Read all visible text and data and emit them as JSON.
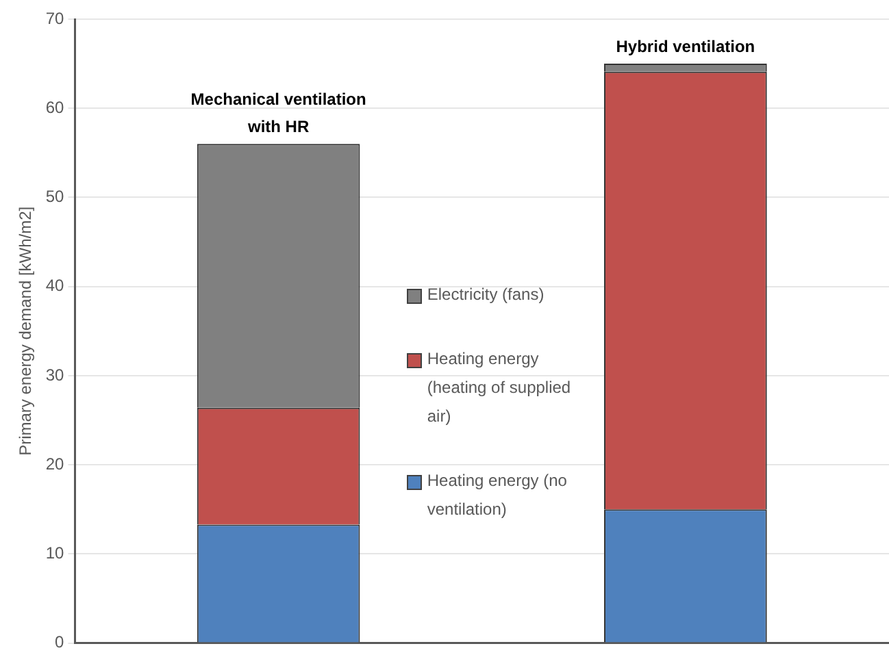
{
  "chart_data": {
    "type": "bar",
    "stacked": true,
    "ylabel": "Primary energy demand [kWh/m2]",
    "categories": [
      "Mechanical ventilation with HR",
      "Hybrid ventilation"
    ],
    "series": [
      {
        "name": "Heating energy (no ventilation)",
        "color": "#4f81bd",
        "values": [
          13.3,
          15
        ]
      },
      {
        "name": "Heating energy (heating of supplied air)",
        "color": "#c0504d",
        "values": [
          13.1,
          49.1
        ]
      },
      {
        "name": "Electricity (fans)",
        "color": "#808080",
        "values": [
          29.6,
          0.9
        ]
      }
    ],
    "ylim": [
      0,
      70
    ],
    "yticks": [
      0,
      10,
      20,
      30,
      40,
      50,
      60,
      70
    ],
    "grid": "y",
    "legend": "center",
    "tick_labels": "y"
  }
}
